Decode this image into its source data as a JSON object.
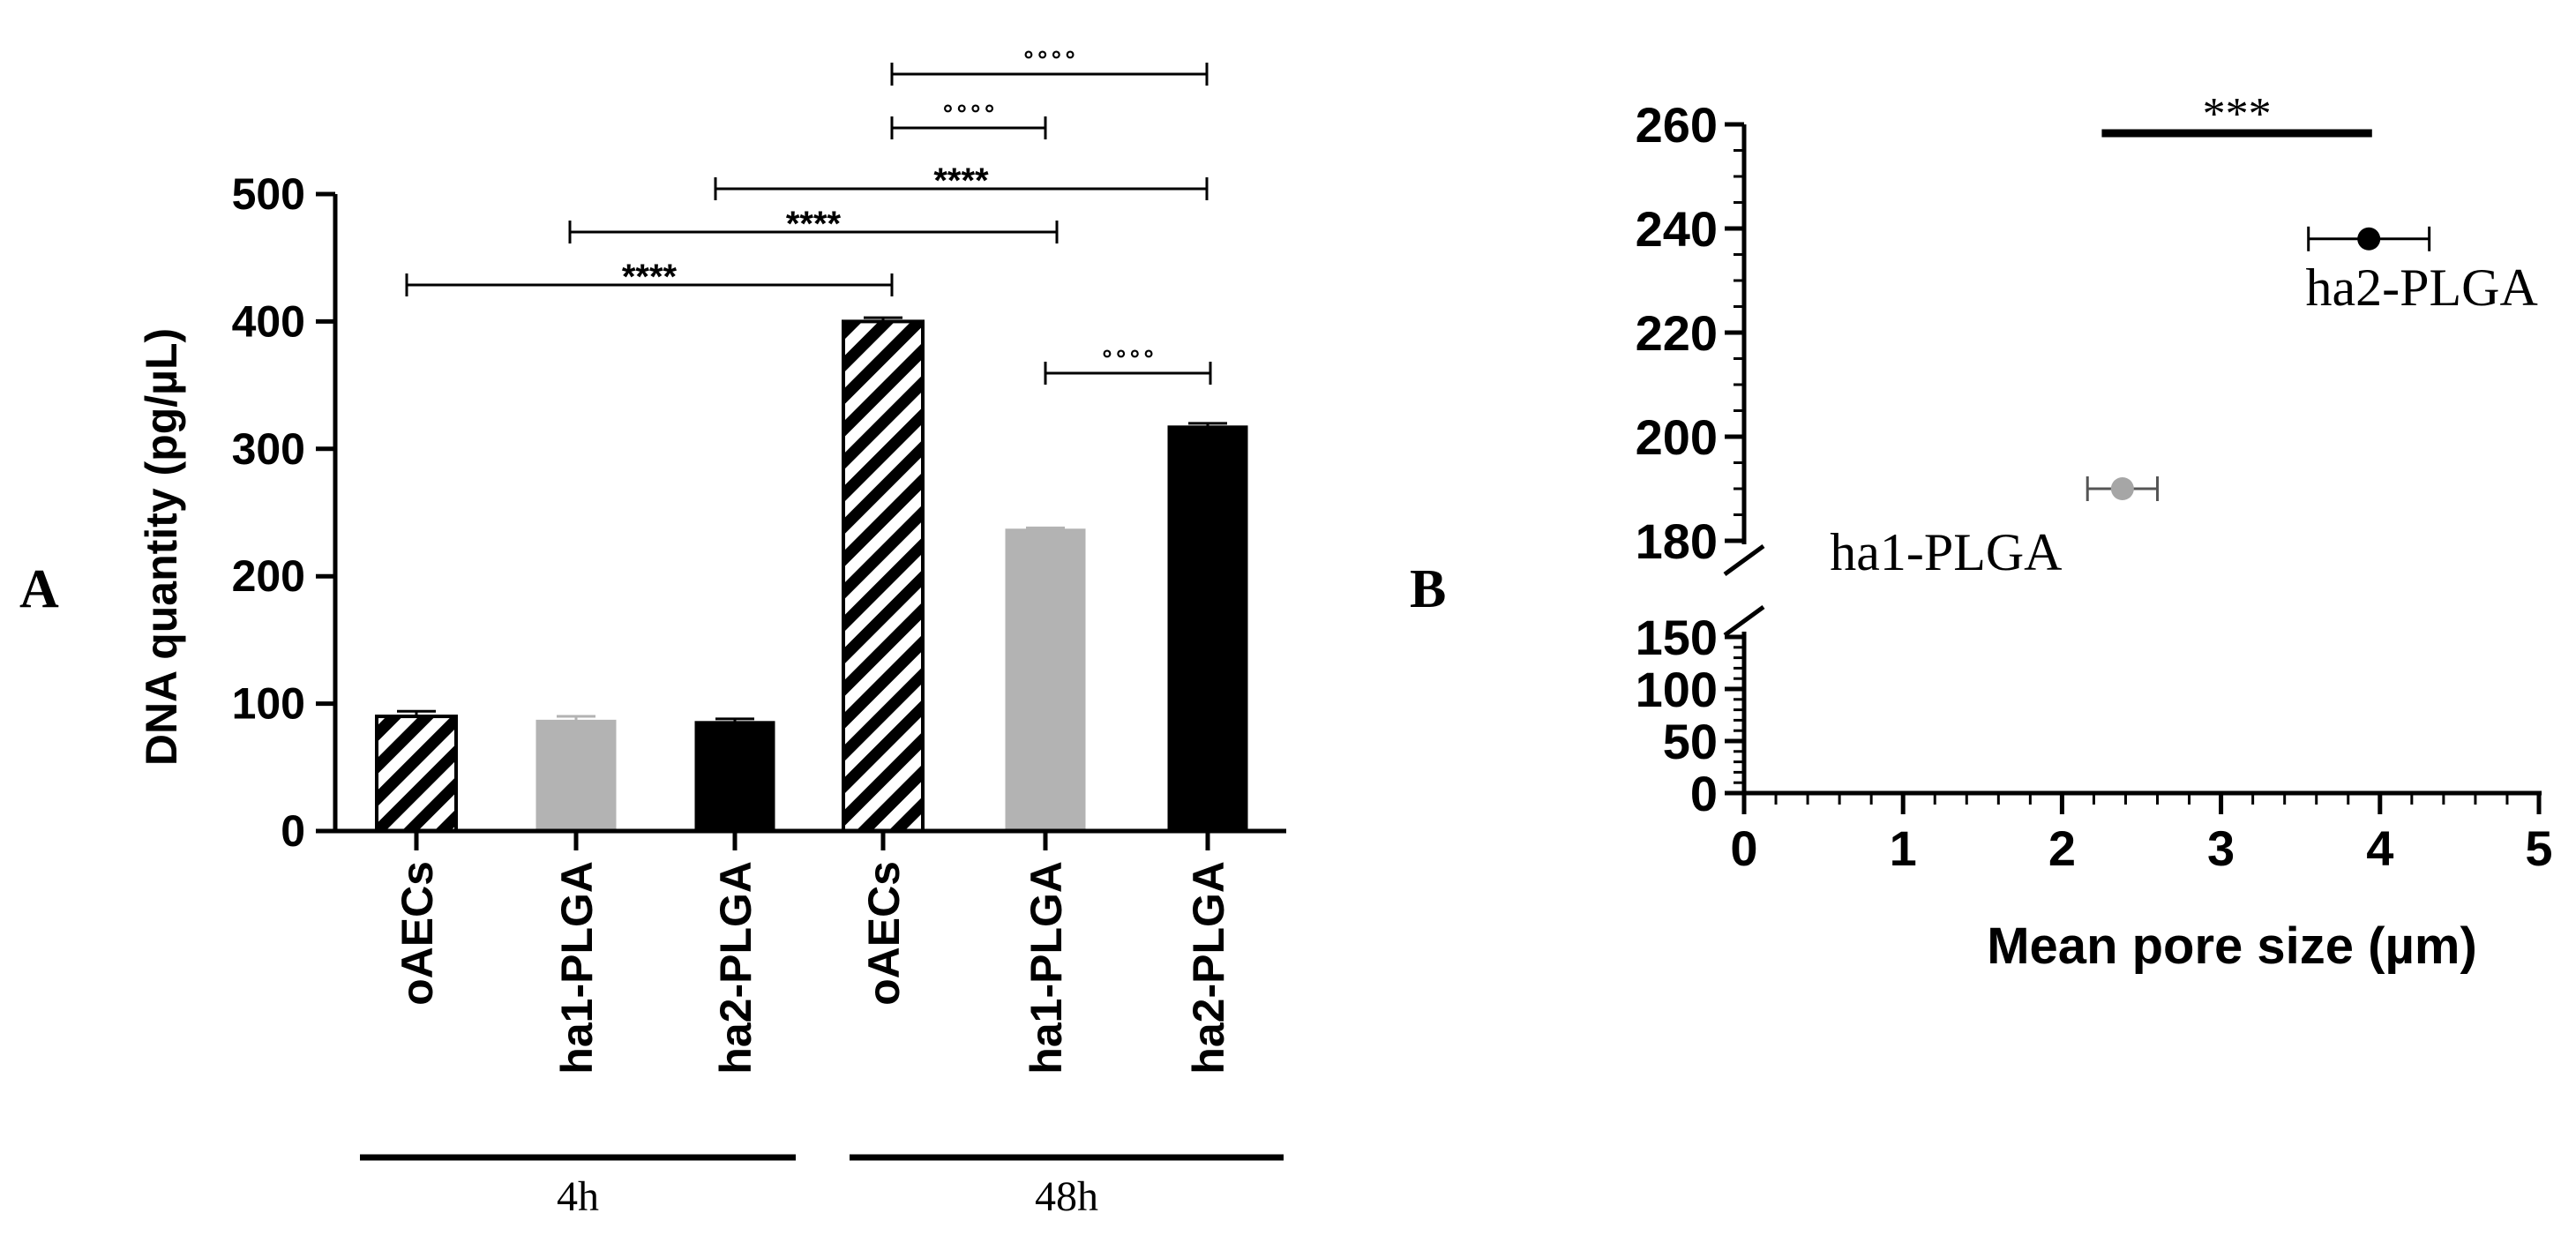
{
  "panels": [
    {
      "label": "A"
    },
    {
      "label": "B"
    }
  ],
  "chart_data": [
    {
      "type": "bar",
      "panel": "A",
      "ylabel": "DNA quantity (pg/µL)",
      "xlabel": "",
      "ylim": [
        0,
        500
      ],
      "yticks": [
        "0",
        "100",
        "200",
        "300",
        "400",
        "500"
      ],
      "categories": [
        "oAECs",
        "ha1-PLGA",
        "ha2-PLGA",
        "oAECs",
        "ha1-PLGA",
        "ha2-PLGA"
      ],
      "values": [
        90,
        87,
        86,
        400,
        237,
        318
      ],
      "errors": [
        4,
        3,
        2,
        3,
        1,
        2
      ],
      "styles": [
        "hatched",
        "gray",
        "black",
        "hatched",
        "gray",
        "black"
      ],
      "colors": {
        "gray": "#b3b3b3",
        "black": "#000000",
        "hatch": "#000000"
      },
      "groups": [
        {
          "label": "4h",
          "from": 0,
          "to": 2
        },
        {
          "label": "48h",
          "from": 3,
          "to": 5
        }
      ],
      "significance": [
        {
          "from": 3,
          "to": 5,
          "label": "∘∘∘∘"
        },
        {
          "from": 3,
          "to": 4,
          "label": "∘∘∘∘"
        },
        {
          "from": 2,
          "to": 5,
          "label": "****"
        },
        {
          "from": 1,
          "to": 4,
          "label": "****"
        },
        {
          "from": 0,
          "to": 3,
          "label": "****"
        },
        {
          "from": 4,
          "to": 5,
          "label": "∘∘∘∘"
        }
      ]
    },
    {
      "type": "scatter",
      "panel": "B",
      "xlabel": "Mean pore size (µm)",
      "ylabel": "",
      "xlim": [
        0,
        5
      ],
      "xticks": [
        "0",
        "1",
        "2",
        "3",
        "4",
        "5"
      ],
      "y_segments": {
        "lower": {
          "range": [
            0,
            150
          ],
          "ticks": [
            "0",
            "50",
            "100",
            "150"
          ]
        },
        "upper": {
          "range": [
            180,
            260
          ],
          "ticks": [
            "180",
            "200",
            "220",
            "240",
            "260"
          ]
        }
      },
      "points": [
        {
          "label": "ha1-PLGA",
          "x": 2.38,
          "y": 190,
          "xerr": 0.22,
          "color": "#a6a6a6"
        },
        {
          "label": "ha2-PLGA",
          "x": 3.93,
          "y": 238,
          "xerr": 0.38,
          "color": "#000000"
        }
      ],
      "significance": {
        "from_x": 2.25,
        "to_x": 3.95,
        "label": "***"
      }
    }
  ]
}
